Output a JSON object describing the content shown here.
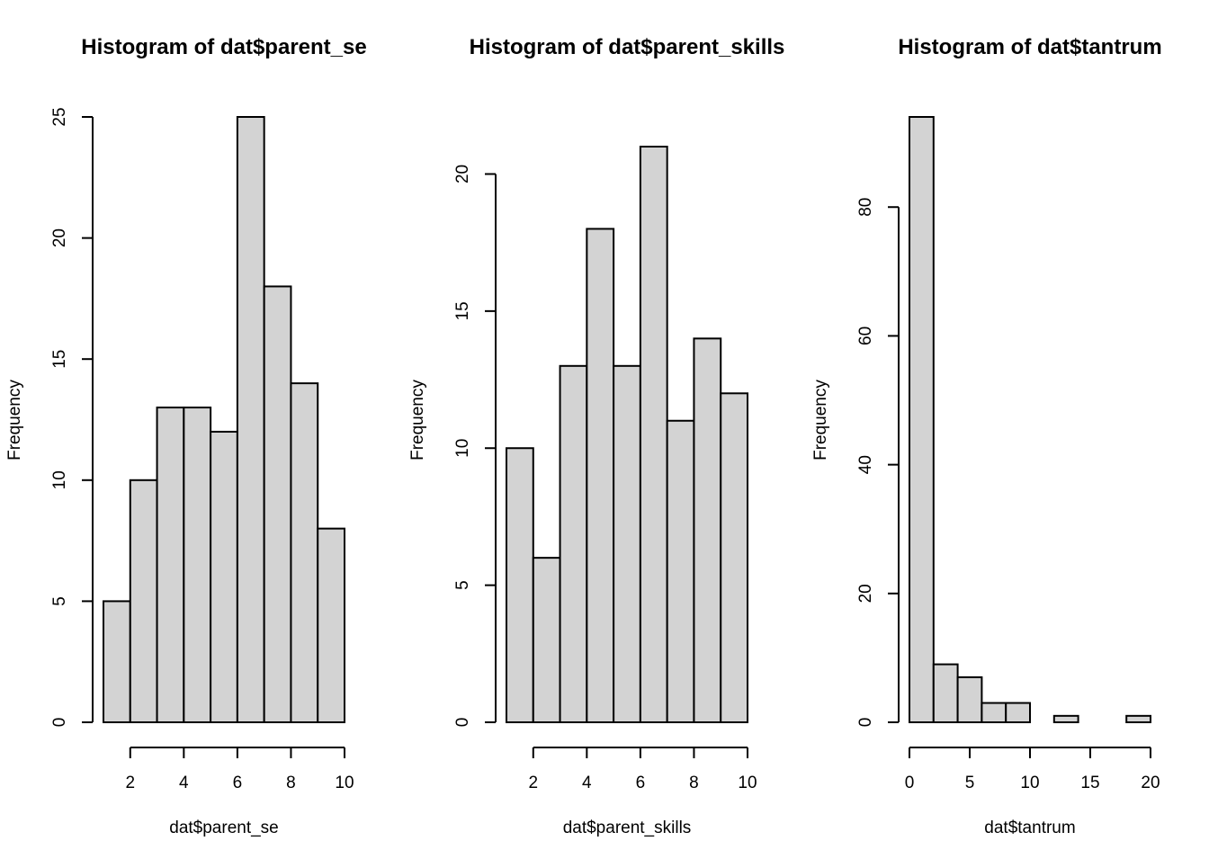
{
  "chart_data": [
    {
      "type": "bar",
      "title": "Histogram of dat$parent_se",
      "xlabel": "dat$parent_se",
      "ylabel": "Frequency",
      "bins": [
        [
          1,
          2
        ],
        [
          2,
          3
        ],
        [
          3,
          4
        ],
        [
          4,
          5
        ],
        [
          5,
          6
        ],
        [
          6,
          7
        ],
        [
          7,
          8
        ],
        [
          8,
          9
        ],
        [
          9,
          10
        ]
      ],
      "values": [
        5,
        10,
        13,
        13,
        12,
        25,
        18,
        14,
        8
      ],
      "xlim": [
        1,
        10
      ],
      "ylim": [
        0,
        25
      ],
      "x_ticks": [
        2,
        4,
        6,
        8,
        10
      ],
      "y_ticks": [
        0,
        5,
        10,
        15,
        20,
        25
      ],
      "bar_color": "#d3d3d3",
      "grid": false
    },
    {
      "type": "bar",
      "title": "Histogram of dat$parent_skills",
      "xlabel": "dat$parent_skills",
      "ylabel": "Frequency",
      "bins": [
        [
          1,
          2
        ],
        [
          2,
          3
        ],
        [
          3,
          4
        ],
        [
          4,
          5
        ],
        [
          5,
          6
        ],
        [
          6,
          7
        ],
        [
          7,
          8
        ],
        [
          8,
          9
        ],
        [
          9,
          10
        ]
      ],
      "values": [
        10,
        6,
        13,
        18,
        13,
        21,
        11,
        14,
        12
      ],
      "xlim": [
        1,
        10
      ],
      "ylim": [
        0,
        21
      ],
      "x_ticks": [
        2,
        4,
        6,
        8,
        10
      ],
      "y_ticks": [
        0,
        5,
        10,
        15,
        20
      ],
      "bar_color": "#d3d3d3",
      "grid": false
    },
    {
      "type": "bar",
      "title": "Histogram of dat$tantrum",
      "xlabel": "dat$tantrum",
      "ylabel": "Frequency",
      "bins": [
        [
          0,
          2
        ],
        [
          2,
          4
        ],
        [
          4,
          6
        ],
        [
          6,
          8
        ],
        [
          8,
          10
        ],
        [
          10,
          12
        ],
        [
          12,
          14
        ],
        [
          14,
          16
        ],
        [
          16,
          18
        ],
        [
          18,
          20
        ]
      ],
      "values": [
        94,
        9,
        7,
        3,
        3,
        0,
        1,
        0,
        0,
        1
      ],
      "xlim": [
        0,
        20
      ],
      "ylim": [
        0,
        94
      ],
      "x_ticks": [
        0,
        5,
        10,
        15,
        20
      ],
      "y_ticks": [
        0,
        20,
        40,
        60,
        80
      ],
      "bar_color": "#d3d3d3",
      "grid": false
    }
  ]
}
